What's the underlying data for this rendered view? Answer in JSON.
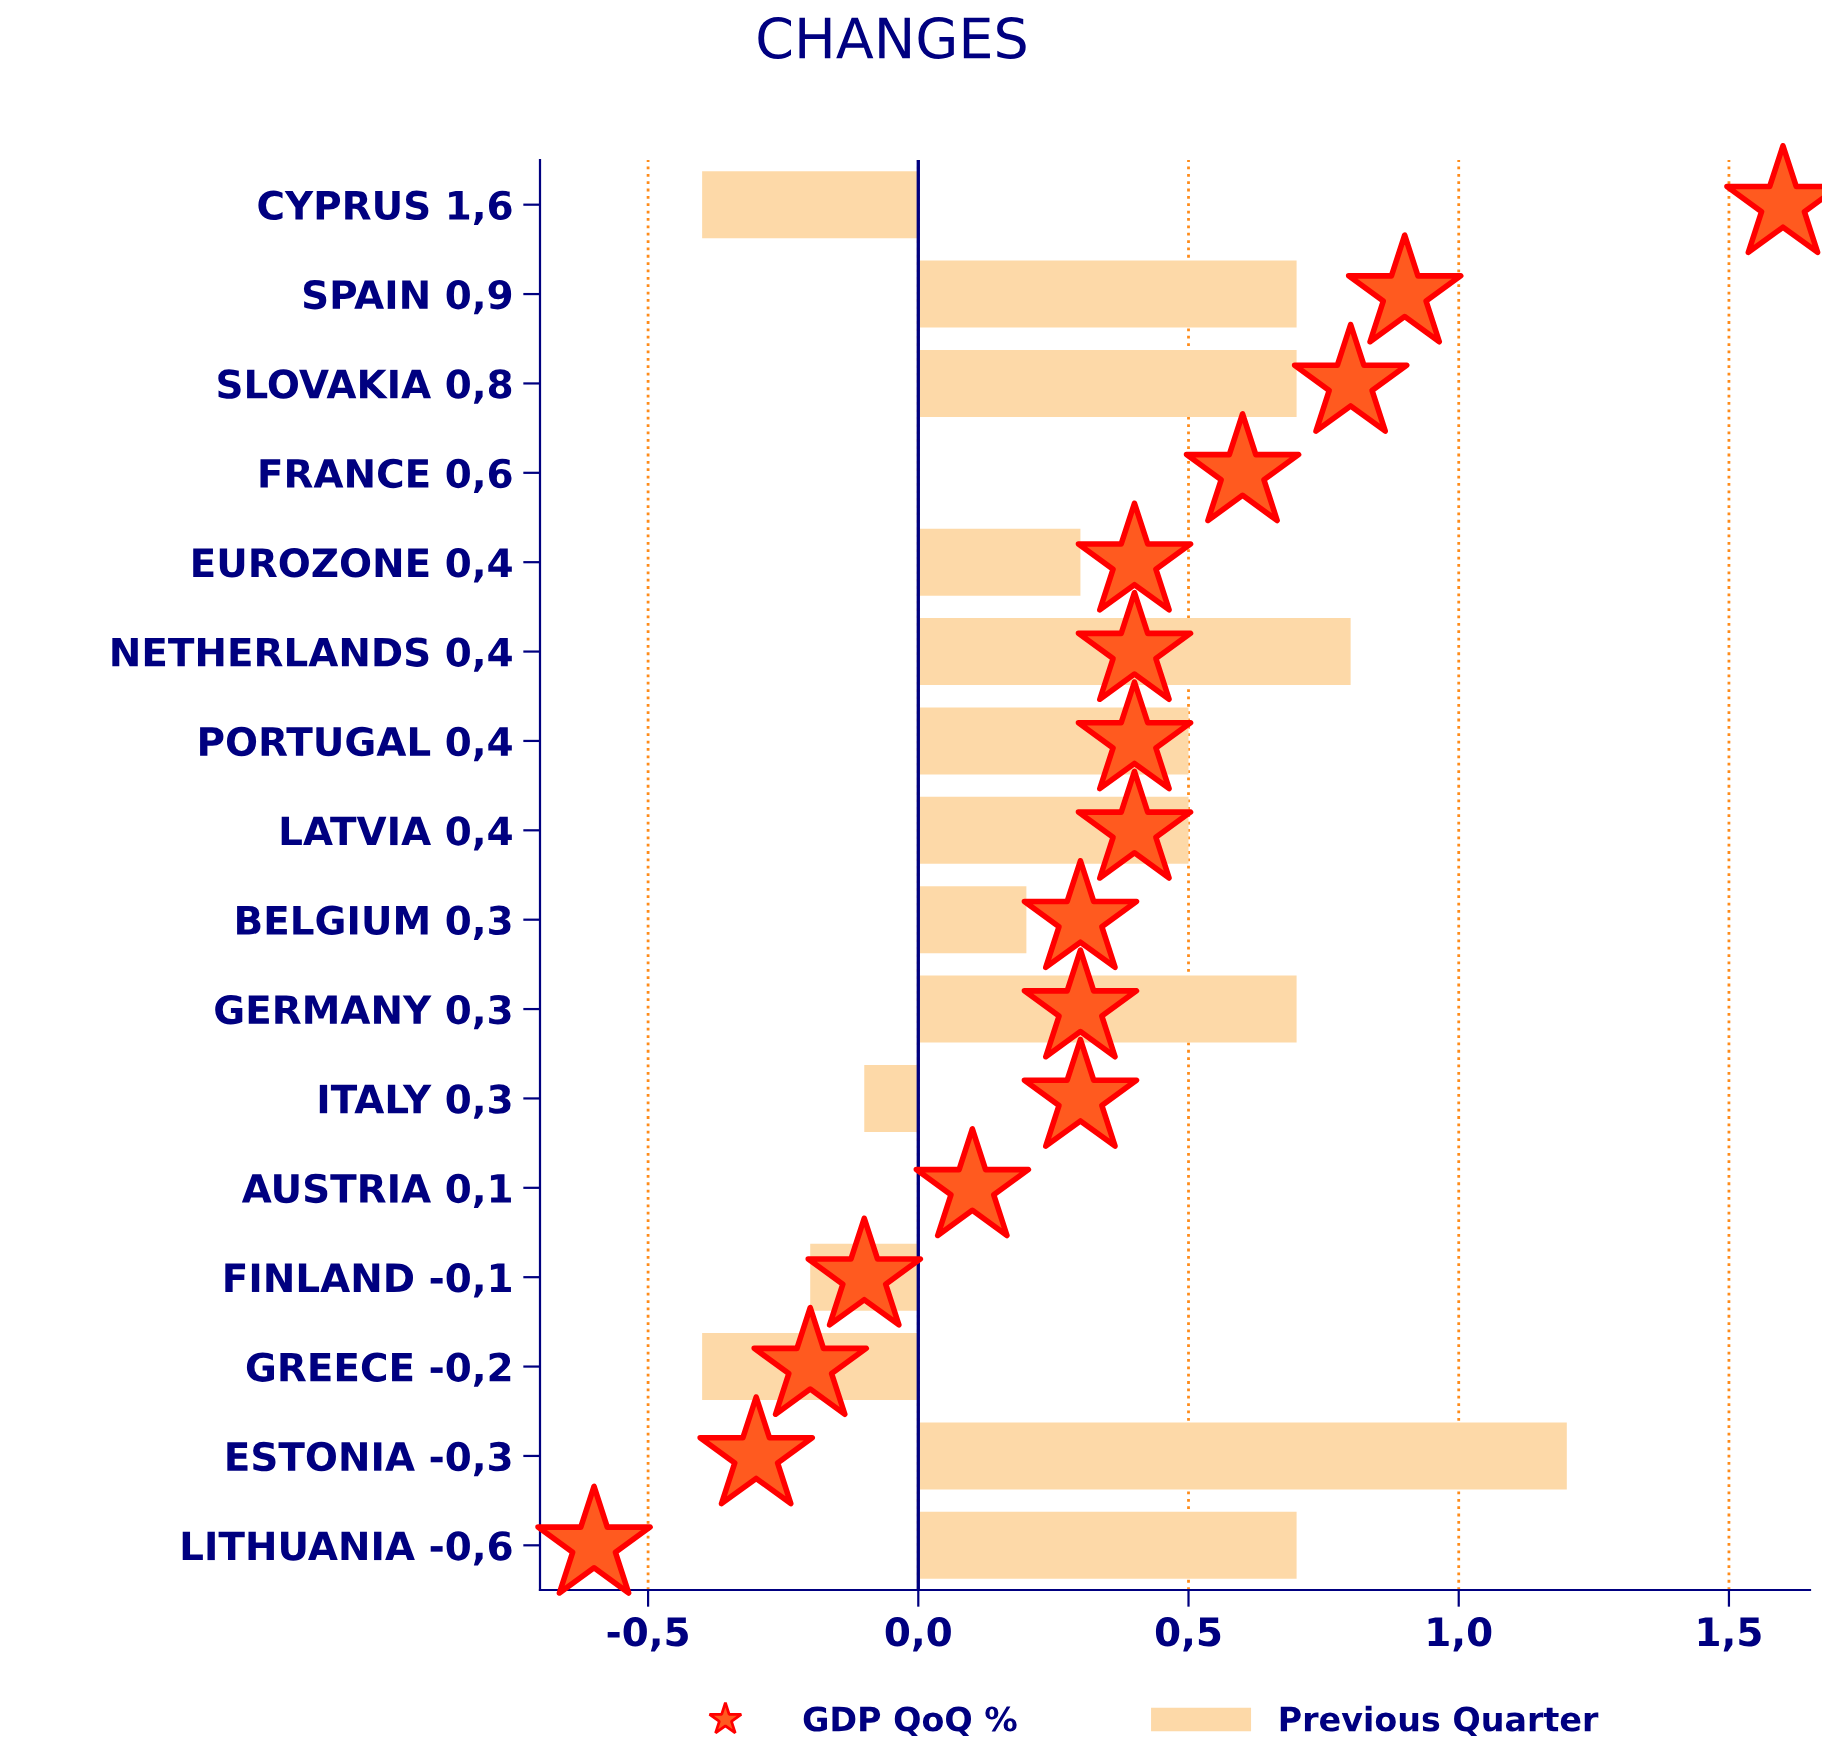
{
  "chart_data": {
    "type": "bar",
    "orientation": "horizontal",
    "title": "CHANGES",
    "categories": [
      "CYPRUS 1,6",
      "SPAIN 0,9",
      "SLOVAKIA 0,8",
      "FRANCE 0,6",
      "EUROZONE 0,4",
      "NETHERLANDS 0,4",
      "PORTUGAL 0,4",
      "LATVIA 0,4",
      "BELGIUM 0,3",
      "GERMANY 0,3",
      "ITALY 0,3",
      "AUSTRIA 0,1",
      "FINLAND -0,1",
      "GREECE -0,2",
      "ESTONIA -0,3",
      "LITHUANIA -0,6"
    ],
    "series": [
      {
        "name": "GDP QoQ %",
        "type": "scatter",
        "marker": "star",
        "color": "#ff5a1f",
        "values": [
          1.6,
          0.9,
          0.8,
          0.6,
          0.4,
          0.4,
          0.4,
          0.4,
          0.3,
          0.3,
          0.3,
          0.1,
          -0.1,
          -0.2,
          -0.3,
          -0.6
        ]
      },
      {
        "name": "Previous Quarter",
        "color": "#fdd9a8",
        "values": [
          -0.4,
          0.7,
          0.7,
          0,
          0.3,
          0.8,
          0.5,
          0.5,
          0.2,
          0.7,
          -0.1,
          0,
          -0.2,
          -0.4,
          1.2,
          0.7
        ]
      }
    ],
    "xlim": [
      -0.7,
      1.65
    ],
    "xticks": [
      {
        "value": -0.5,
        "label": "-0,5"
      },
      {
        "value": 0,
        "label": "0,0"
      },
      {
        "value": 0.5,
        "label": "0,5"
      },
      {
        "value": 1,
        "label": "1,0"
      },
      {
        "value": 1.5,
        "label": "1,5"
      }
    ],
    "ref_lines": [
      {
        "axis": "x",
        "value": 0,
        "color": "#000080"
      }
    ],
    "grid": "x",
    "legend": "bottom"
  }
}
